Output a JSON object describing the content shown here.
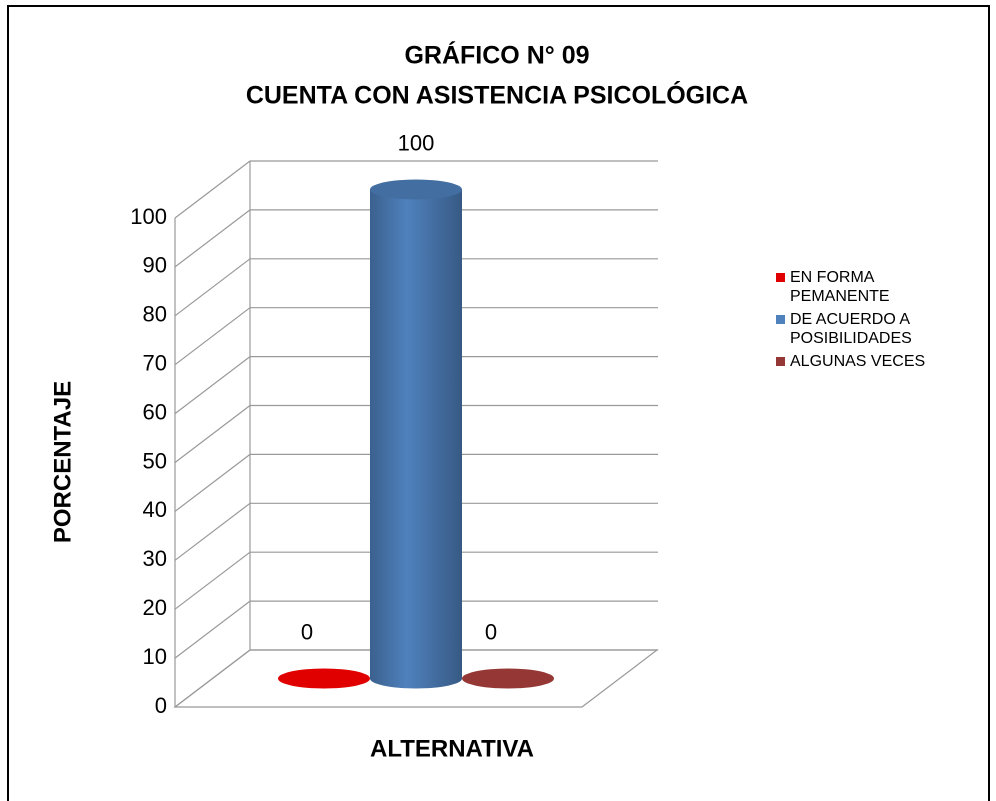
{
  "chart_data": {
    "type": "bar3d",
    "title": "GRÁFICO N° 09",
    "subtitle": "CUENTA CON ASISTENCIA PSICOLÓGICA",
    "ylabel": "PORCENTAJE",
    "xlabel": "ALTERNATIVA",
    "series": [
      {
        "name": "EN FORMA PEMANENTE",
        "color": "#e00000",
        "values": [
          0
        ]
      },
      {
        "name": "DE ACUERDO A POSIBILIDADES",
        "color": "#4f81bd",
        "values": [
          100
        ]
      },
      {
        "name": "ALGUNAS VECES",
        "color": "#953735",
        "values": [
          0
        ]
      }
    ],
    "ylim": [
      0,
      100
    ],
    "yticks": [
      0,
      10,
      20,
      30,
      40,
      50,
      60,
      70,
      80,
      90,
      100
    ],
    "grid": true,
    "legend": "right"
  }
}
